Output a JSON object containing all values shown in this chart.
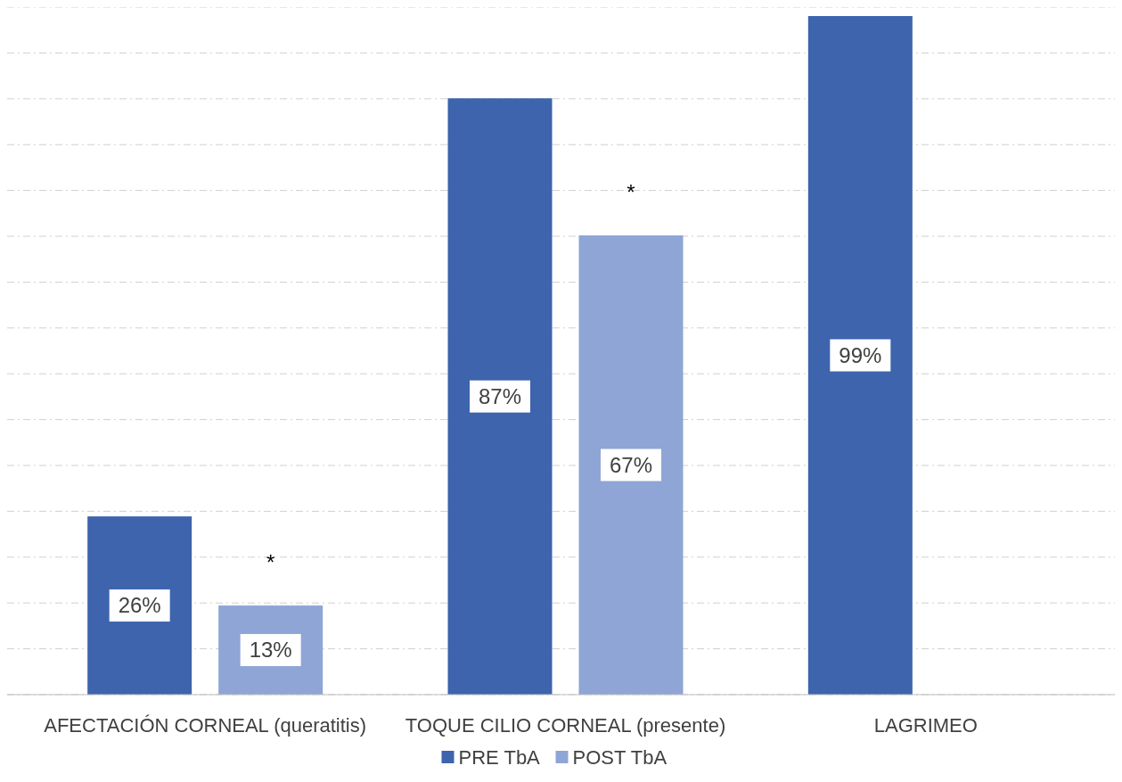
{
  "chart_data": {
    "type": "bar",
    "categories": [
      "AFECTACIÓN CORNEAL (queratitis)",
      "TOQUE CILIO CORNEAL (presente)",
      "LAGRIMEO"
    ],
    "series": [
      {
        "name": "PRE TbA",
        "color": "#3d64ad",
        "values": [
          26,
          87,
          99
        ],
        "value_labels": [
          "26%",
          "87%",
          "99%"
        ]
      },
      {
        "name": "POST TbA",
        "color": "#8fa5d6",
        "values": [
          13,
          67,
          null
        ],
        "value_labels": [
          "13%",
          "67%",
          null
        ]
      }
    ],
    "grid": "y",
    "legend": "bottom",
    "annotations": [
      "*",
      "*"
    ]
  }
}
